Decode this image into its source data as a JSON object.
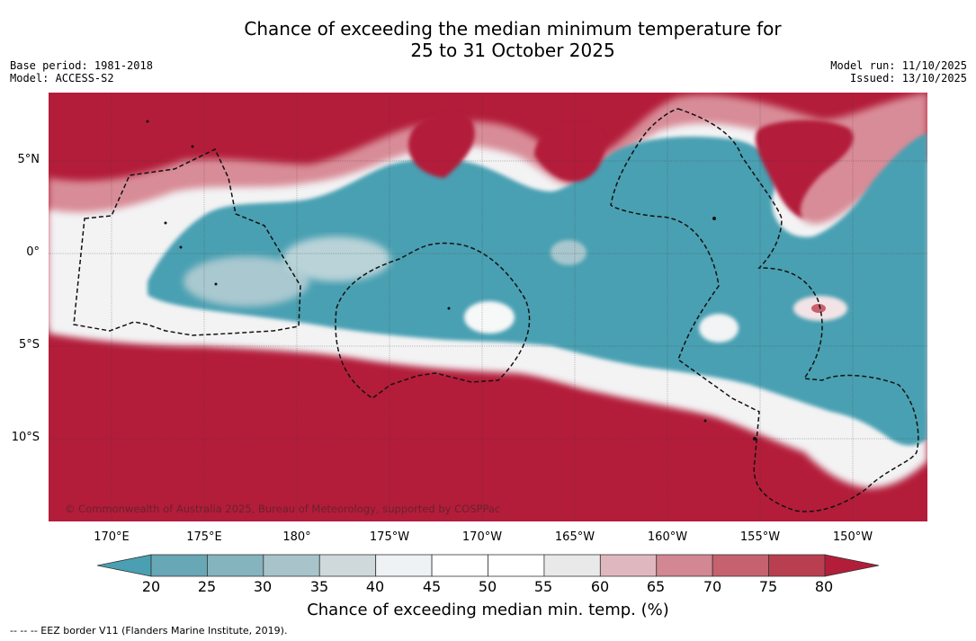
{
  "title": {
    "line1": "Chance of exceeding the median minimum temperature for",
    "line2": "25 to 31 October 2025"
  },
  "meta": {
    "base_period": "Base period: 1981-2018",
    "model": "Model: ACCESS-S2",
    "model_run": "Model run: 11/10/2025",
    "issued": "Issued: 13/10/2025"
  },
  "map": {
    "copyright": "© Commonwealth of Australia 2025, Bureau of Meteorology, supported by COSPPac",
    "lat_labels": [
      "5°N",
      "0°",
      "5°S",
      "10°S"
    ],
    "lon_labels": [
      "170°E",
      "175°E",
      "180°",
      "175°W",
      "170°W",
      "165°W",
      "160°W",
      "155°W",
      "150°W"
    ],
    "colors": {
      "cold": "#4aa0b2",
      "warm": "#b31d3a",
      "neutral": "#ffffff"
    }
  },
  "colorbar": {
    "ticks": [
      "20",
      "25",
      "30",
      "35",
      "40",
      "45",
      "50",
      "55",
      "60",
      "65",
      "70",
      "75",
      "80"
    ],
    "colors": [
      "#68a7b5",
      "#85b3be",
      "#a8c4ca",
      "#cfd9dc",
      "#eef2f4",
      "#ffffff",
      "#ffffff",
      "#e9e9ea",
      "#dfb8bf",
      "#d28792",
      "#c6616f",
      "#b93f50"
    ],
    "under_color": "#4aa0b2",
    "over_color": "#b31d3a",
    "label": "Chance of exceeding median min. temp. (%)"
  },
  "footnote": "--  --  -- EEZ border V11 (Flanders Marine Institute, 2019)."
}
